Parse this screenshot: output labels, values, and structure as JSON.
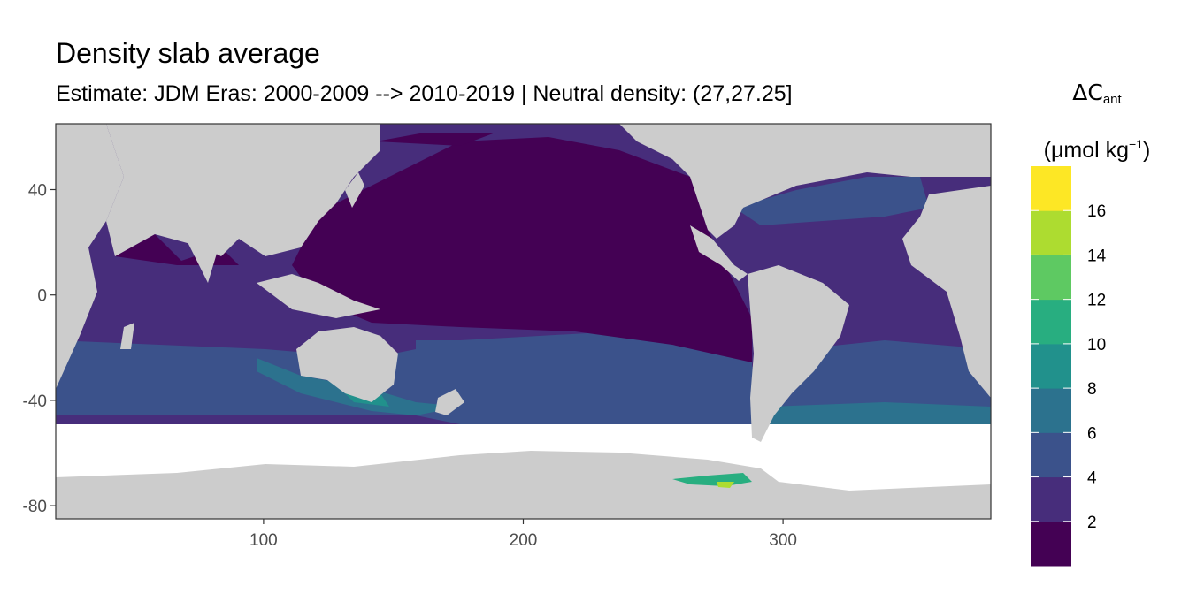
{
  "header": {
    "title": "Density slab average",
    "subtitle": "Estimate: JDM Eras: 2000-2009 --> 2010-2019 | Neutral density: (27,27.25]"
  },
  "legend": {
    "title_symbol": "ΔC",
    "title_subscript": "ant",
    "unit_open": "(μmol kg",
    "unit_superscript": "−1",
    "unit_close": ")",
    "breaks": [
      {
        "label": "2",
        "value": 2
      },
      {
        "label": "4",
        "value": 4
      },
      {
        "label": "6",
        "value": 6
      },
      {
        "label": "8",
        "value": 8
      },
      {
        "label": "10",
        "value": 10
      },
      {
        "label": "12",
        "value": 12
      },
      {
        "label": "14",
        "value": 14
      },
      {
        "label": "16",
        "value": 16
      }
    ],
    "colors": [
      "#440154",
      "#472d7b",
      "#3b528b",
      "#2c728e",
      "#21918c",
      "#28ae80",
      "#5ec962",
      "#addc30",
      "#fde725"
    ]
  },
  "map": {
    "land_color": "#cccccc",
    "no_data_color": "#ffffff",
    "x_ticks": [
      {
        "label": "100",
        "value": 100
      },
      {
        "label": "200",
        "value": 200
      },
      {
        "label": "300",
        "value": 300
      }
    ],
    "y_ticks": [
      {
        "label": "40",
        "value": 40
      },
      {
        "label": "0",
        "value": 0
      },
      {
        "label": "-40",
        "value": -40
      },
      {
        "label": "-80",
        "value": -80
      }
    ],
    "x_range": [
      20,
      380
    ],
    "y_range": [
      -85,
      65
    ]
  }
}
